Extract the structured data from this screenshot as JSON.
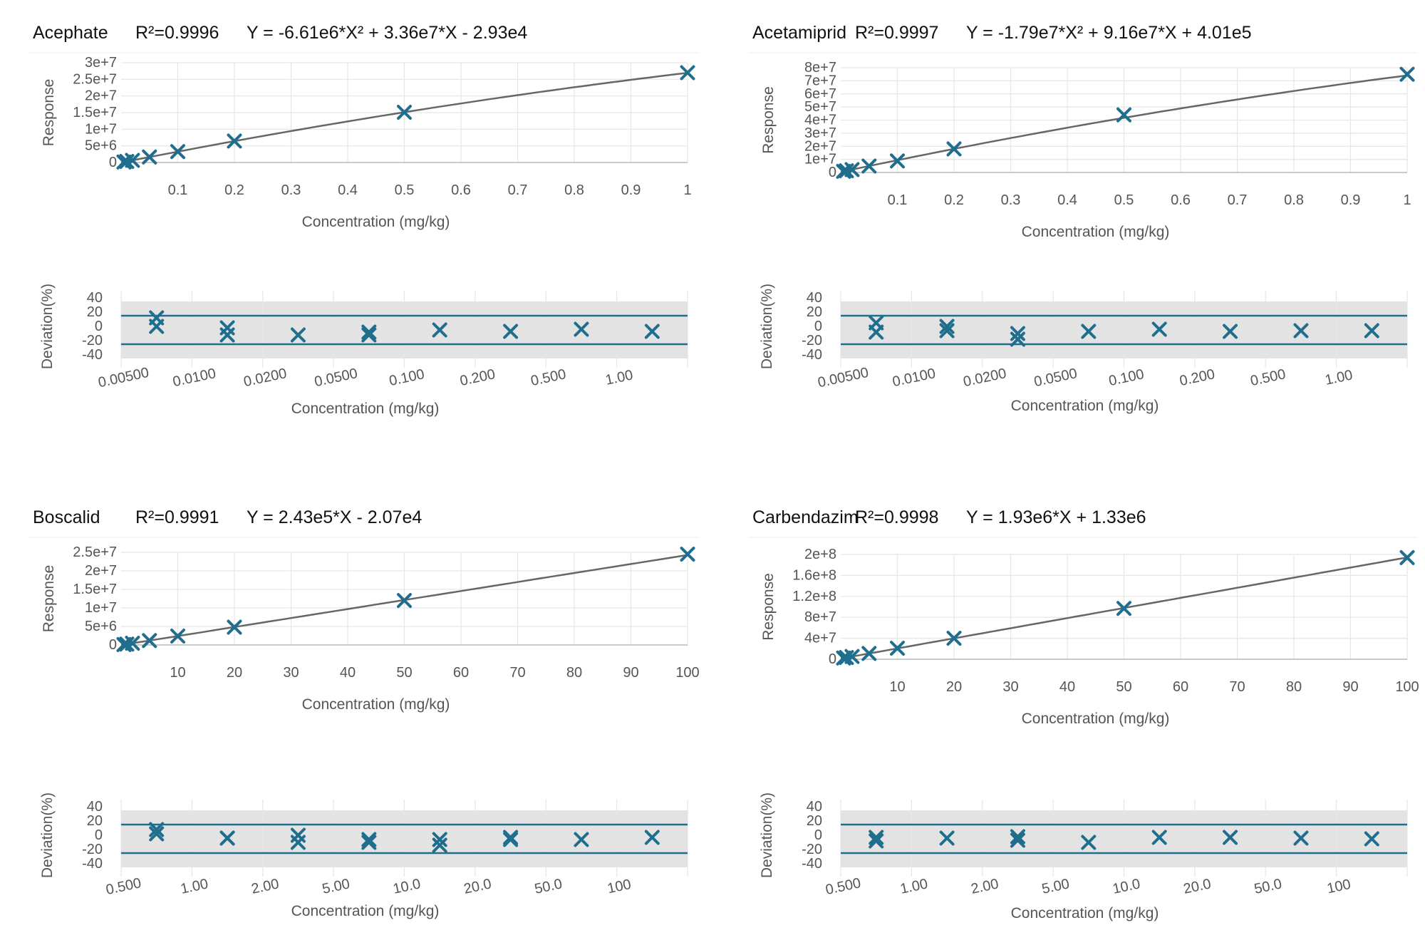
{
  "colors": {
    "marker": "#1f6e8e",
    "fit_line": "#666666",
    "limit_line": "#1f6e8e",
    "band": "#e3e3e3",
    "grid": "#e6e6e6",
    "axis": "#bbbbbb",
    "text": "#555555"
  },
  "icons": {
    "point_marker": "x-mark-icon"
  },
  "chart_data": [
    {
      "type": "scatter",
      "compound": "Acephate",
      "r2": "R²=0.9996",
      "equation": "Y = -6.61e6*X² + 3.36e7*X - 2.93e4",
      "calibration": {
        "xlabel": "Concentration (mg/kg)",
        "ylabel": "Response",
        "xlim": [
          0,
          1
        ],
        "ylim": [
          0,
          30000000
        ],
        "x_ticks": [
          0.1,
          0.2,
          0.3,
          0.4,
          0.5,
          0.6,
          0.7,
          0.8,
          0.9,
          1
        ],
        "x_tick_labels": [
          "0.1",
          "0.2",
          "0.3",
          "0.4",
          "0.5",
          "0.6",
          "0.7",
          "0.8",
          "0.9",
          "1"
        ],
        "y_ticks": [
          0,
          5000000,
          10000000,
          15000000,
          20000000,
          25000000,
          30000000
        ],
        "y_tick_labels": [
          "0",
          "5e+6",
          "1e+7",
          "1.5e+7",
          "2e+7",
          "2.5e+7",
          "3e+7"
        ],
        "fit": {
          "a": -6610000,
          "b": 33600000,
          "c": -29300
        },
        "points": [
          {
            "x": 0.005,
            "y": 140000
          },
          {
            "x": 0.01,
            "y": 310000
          },
          {
            "x": 0.02,
            "y": 640000
          },
          {
            "x": 0.05,
            "y": 1650000
          },
          {
            "x": 0.1,
            "y": 3280000
          },
          {
            "x": 0.2,
            "y": 6450000
          },
          {
            "x": 0.5,
            "y": 15100000
          },
          {
            "x": 1,
            "y": 27000000
          }
        ]
      },
      "deviation": {
        "xlabel": "Concentration (mg/kg)",
        "ylabel": "Deviation(%)",
        "ylim": [
          -40,
          40
        ],
        "y_ticks": [
          40,
          20,
          0,
          -20,
          -40
        ],
        "band": [
          -45,
          35
        ],
        "limits": [
          15,
          -25
        ],
        "categories": [
          "0.00500",
          "0.0100",
          "0.0200",
          "0.0500",
          "0.100",
          "0.200",
          "0.500",
          "1.00"
        ],
        "points": [
          {
            "i": 0,
            "y": 12
          },
          {
            "i": 0,
            "y": 0
          },
          {
            "i": 1,
            "y": -2
          },
          {
            "i": 1,
            "y": -12
          },
          {
            "i": 2,
            "y": -12
          },
          {
            "i": 3,
            "y": -8
          },
          {
            "i": 3,
            "y": -12
          },
          {
            "i": 4,
            "y": -5
          },
          {
            "i": 5,
            "y": -7
          },
          {
            "i": 6,
            "y": -4
          },
          {
            "i": 7,
            "y": -7
          }
        ]
      }
    },
    {
      "type": "scatter",
      "compound": "Acetamiprid",
      "r2": "R²=0.9997",
      "equation": "Y = -1.79e7*X² + 9.16e7*X + 4.01e5",
      "calibration": {
        "xlabel": "Concentration (mg/kg)",
        "ylabel": "Response",
        "xlim": [
          0,
          1
        ],
        "ylim": [
          0,
          80000000
        ],
        "x_ticks": [
          0.1,
          0.2,
          0.3,
          0.4,
          0.5,
          0.6,
          0.7,
          0.8,
          0.9,
          1
        ],
        "x_tick_labels": [
          "0.1",
          "0.2",
          "0.3",
          "0.4",
          "0.5",
          "0.6",
          "0.7",
          "0.8",
          "0.9",
          "1"
        ],
        "y_ticks": [
          0,
          10000000,
          20000000,
          30000000,
          40000000,
          50000000,
          60000000,
          70000000,
          80000000
        ],
        "y_tick_labels": [
          "0",
          "1e+7",
          "2e+7",
          "3e+7",
          "4e+7",
          "5e+7",
          "6e+7",
          "7e+7",
          "8e+7"
        ],
        "fit": {
          "a": -17900000,
          "b": 91600000,
          "c": 401000
        },
        "points": [
          {
            "x": 0.005,
            "y": 850000
          },
          {
            "x": 0.01,
            "y": 1300000
          },
          {
            "x": 0.02,
            "y": 2200000
          },
          {
            "x": 0.05,
            "y": 4900000
          },
          {
            "x": 0.1,
            "y": 8800000
          },
          {
            "x": 0.2,
            "y": 18000000
          },
          {
            "x": 0.5,
            "y": 44000000
          },
          {
            "x": 1,
            "y": 75000000
          }
        ]
      },
      "deviation": {
        "xlabel": "Concentration (mg/kg)",
        "ylabel": "Deviation(%)",
        "ylim": [
          -40,
          40
        ],
        "y_ticks": [
          40,
          20,
          0,
          -20,
          -40
        ],
        "band": [
          -45,
          35
        ],
        "limits": [
          15,
          -25
        ],
        "categories": [
          "0.00500",
          "0.0100",
          "0.0200",
          "0.0500",
          "0.100",
          "0.200",
          "0.500",
          "1.00"
        ],
        "points": [
          {
            "i": 0,
            "y": 5
          },
          {
            "i": 0,
            "y": -8
          },
          {
            "i": 1,
            "y": 0
          },
          {
            "i": 1,
            "y": -6
          },
          {
            "i": 2,
            "y": -10
          },
          {
            "i": 2,
            "y": -18
          },
          {
            "i": 3,
            "y": -7
          },
          {
            "i": 4,
            "y": -4
          },
          {
            "i": 5,
            "y": -7
          },
          {
            "i": 6,
            "y": -6
          },
          {
            "i": 7,
            "y": -6
          }
        ]
      }
    },
    {
      "type": "scatter",
      "compound": "Boscalid",
      "r2": "R²=0.9991",
      "equation": "Y = 2.43e5*X - 2.07e4",
      "calibration": {
        "xlabel": "Concentration (mg/kg)",
        "ylabel": "Response",
        "xlim": [
          0,
          100
        ],
        "ylim": [
          0,
          25000000
        ],
        "x_ticks": [
          10,
          20,
          30,
          40,
          50,
          60,
          70,
          80,
          90,
          100
        ],
        "x_tick_labels": [
          "10",
          "20",
          "30",
          "40",
          "50",
          "60",
          "70",
          "80",
          "90",
          "100"
        ],
        "y_ticks": [
          0,
          5000000,
          10000000,
          15000000,
          20000000,
          25000000
        ],
        "y_tick_labels": [
          "0",
          "5e+6",
          "1e+7",
          "1.5e+7",
          "2e+7",
          "2.5e+7"
        ],
        "fit": {
          "a": 0,
          "b": 243000,
          "c": -20700
        },
        "points": [
          {
            "x": 0.5,
            "y": 110000
          },
          {
            "x": 1,
            "y": 230000
          },
          {
            "x": 2,
            "y": 470000
          },
          {
            "x": 5,
            "y": 1190000
          },
          {
            "x": 10,
            "y": 2400000
          },
          {
            "x": 20,
            "y": 4800000
          },
          {
            "x": 50,
            "y": 12000000
          },
          {
            "x": 100,
            "y": 24500000
          }
        ]
      },
      "deviation": {
        "xlabel": "Concentration (mg/kg)",
        "ylabel": "Deviation(%)",
        "ylim": [
          -40,
          40
        ],
        "y_ticks": [
          40,
          20,
          0,
          -20,
          -40
        ],
        "band": [
          -45,
          35
        ],
        "limits": [
          15,
          -25
        ],
        "categories": [
          "0.500",
          "1.00",
          "2.00",
          "5.00",
          "10.0",
          "20.0",
          "50.0",
          "100"
        ],
        "points": [
          {
            "i": 0,
            "y": 8
          },
          {
            "i": 0,
            "y": 2
          },
          {
            "i": 1,
            "y": -4
          },
          {
            "i": 1,
            "y": -4
          },
          {
            "i": 2,
            "y": 0
          },
          {
            "i": 2,
            "y": -10
          },
          {
            "i": 3,
            "y": -6
          },
          {
            "i": 3,
            "y": -10
          },
          {
            "i": 4,
            "y": -6
          },
          {
            "i": 4,
            "y": -14
          },
          {
            "i": 5,
            "y": -3
          },
          {
            "i": 5,
            "y": -6
          },
          {
            "i": 6,
            "y": -6
          },
          {
            "i": 7,
            "y": -3
          }
        ]
      }
    },
    {
      "type": "scatter",
      "compound": "Carbendazim",
      "r2": "R²=0.9998",
      "equation": "Y = 1.93e6*X + 1.33e6",
      "calibration": {
        "xlabel": "Concentration (mg/kg)",
        "ylabel": "Response",
        "xlim": [
          0,
          100
        ],
        "ylim": [
          0,
          200000000
        ],
        "x_ticks": [
          10,
          20,
          30,
          40,
          50,
          60,
          70,
          80,
          90,
          100
        ],
        "x_tick_labels": [
          "10",
          "20",
          "30",
          "40",
          "50",
          "60",
          "70",
          "80",
          "90",
          "100"
        ],
        "y_ticks": [
          0,
          40000000,
          80000000,
          120000000,
          160000000,
          200000000
        ],
        "y_tick_labels": [
          "0",
          "4e+7",
          "8e+7",
          "1.2e+8",
          "1.6e+8",
          "2e+8"
        ],
        "fit": {
          "a": 0,
          "b": 1930000,
          "c": 1330000
        },
        "points": [
          {
            "x": 0.5,
            "y": 2300000
          },
          {
            "x": 1,
            "y": 3200000
          },
          {
            "x": 2,
            "y": 5200000
          },
          {
            "x": 5,
            "y": 11000000
          },
          {
            "x": 10,
            "y": 21000000
          },
          {
            "x": 20,
            "y": 40000000
          },
          {
            "x": 50,
            "y": 97000000
          },
          {
            "x": 100,
            "y": 194000000
          }
        ]
      },
      "deviation": {
        "xlabel": "Concentration (mg/kg)",
        "ylabel": "Deviation(%)",
        "ylim": [
          -40,
          40
        ],
        "y_ticks": [
          40,
          20,
          0,
          -20,
          -40
        ],
        "band": [
          -45,
          35
        ],
        "limits": [
          15,
          -25
        ],
        "categories": [
          "0.500",
          "1.00",
          "2.00",
          "5.00",
          "10.0",
          "20.0",
          "50.0",
          "100"
        ],
        "points": [
          {
            "i": 0,
            "y": -3
          },
          {
            "i": 0,
            "y": -8
          },
          {
            "i": 1,
            "y": -4
          },
          {
            "i": 2,
            "y": -2
          },
          {
            "i": 2,
            "y": -7
          },
          {
            "i": 3,
            "y": -10
          },
          {
            "i": 4,
            "y": -3
          },
          {
            "i": 5,
            "y": -3
          },
          {
            "i": 6,
            "y": -4
          },
          {
            "i": 7,
            "y": -5
          }
        ]
      }
    }
  ]
}
